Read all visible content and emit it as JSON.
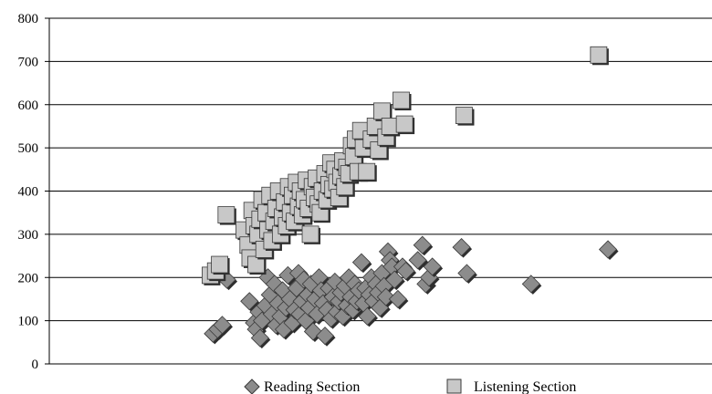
{
  "chart_data": {
    "type": "scatter",
    "title": "",
    "xlabel": "",
    "ylabel": "",
    "ylim": [
      0,
      800
    ],
    "yticks": [
      "0",
      "100",
      "200",
      "300",
      "400",
      "500",
      "600",
      "700",
      "800"
    ],
    "grid": "horizontal",
    "legend_placement": "bottom-center",
    "series": [
      {
        "name": "Reading Section",
        "marker": "diamond",
        "color": "#8c8c8c",
        "points": [
          [
            0.247,
            70
          ],
          [
            0.254,
            80
          ],
          [
            0.261,
            90
          ],
          [
            0.268,
            195
          ],
          [
            0.302,
            145
          ],
          [
            0.309,
            95
          ],
          [
            0.312,
            80
          ],
          [
            0.316,
            120
          ],
          [
            0.318,
            60
          ],
          [
            0.321,
            100
          ],
          [
            0.326,
            135
          ],
          [
            0.33,
            200
          ],
          [
            0.333,
            160
          ],
          [
            0.336,
            115
          ],
          [
            0.34,
            185
          ],
          [
            0.342,
            90
          ],
          [
            0.345,
            140
          ],
          [
            0.349,
            110
          ],
          [
            0.352,
            170
          ],
          [
            0.354,
            80
          ],
          [
            0.357,
            130
          ],
          [
            0.36,
            205
          ],
          [
            0.363,
            150
          ],
          [
            0.367,
            95
          ],
          [
            0.37,
            125
          ],
          [
            0.373,
            175
          ],
          [
            0.376,
            210
          ],
          [
            0.378,
            115
          ],
          [
            0.381,
            145
          ],
          [
            0.384,
            195
          ],
          [
            0.387,
            100
          ],
          [
            0.39,
            160
          ],
          [
            0.392,
            130
          ],
          [
            0.395,
            185
          ],
          [
            0.398,
            75
          ],
          [
            0.401,
            150
          ],
          [
            0.404,
            115
          ],
          [
            0.407,
            200
          ],
          [
            0.41,
            170
          ],
          [
            0.413,
            140
          ],
          [
            0.416,
            65
          ],
          [
            0.419,
            125
          ],
          [
            0.422,
            175
          ],
          [
            0.425,
            105
          ],
          [
            0.428,
            155
          ],
          [
            0.431,
            190
          ],
          [
            0.434,
            120
          ],
          [
            0.437,
            145
          ],
          [
            0.44,
            165
          ],
          [
            0.443,
            110
          ],
          [
            0.446,
            180
          ],
          [
            0.449,
            135
          ],
          [
            0.452,
            200
          ],
          [
            0.455,
            155
          ],
          [
            0.458,
            125
          ],
          [
            0.461,
            185
          ],
          [
            0.464,
            145
          ],
          [
            0.467,
            170
          ],
          [
            0.471,
            235
          ],
          [
            0.474,
            140
          ],
          [
            0.477,
            175
          ],
          [
            0.48,
            110
          ],
          [
            0.483,
            160
          ],
          [
            0.486,
            200
          ],
          [
            0.489,
            145
          ],
          [
            0.493,
            185
          ],
          [
            0.496,
            165
          ],
          [
            0.499,
            130
          ],
          [
            0.502,
            210
          ],
          [
            0.505,
            180
          ],
          [
            0.508,
            155
          ],
          [
            0.511,
            260
          ],
          [
            0.514,
            240
          ],
          [
            0.517,
            225
          ],
          [
            0.521,
            195
          ],
          [
            0.526,
            150
          ],
          [
            0.533,
            225
          ],
          [
            0.538,
            215
          ],
          [
            0.556,
            240
          ],
          [
            0.563,
            275
          ],
          [
            0.568,
            185
          ],
          [
            0.573,
            200
          ],
          [
            0.578,
            225
          ],
          [
            0.622,
            270
          ],
          [
            0.63,
            210
          ],
          [
            0.727,
            185
          ],
          [
            0.843,
            265
          ]
        ]
      },
      {
        "name": "Listening Section",
        "marker": "square",
        "color": "#c8c8c8",
        "points": [
          [
            0.243,
            205
          ],
          [
            0.251,
            215
          ],
          [
            0.257,
            230
          ],
          [
            0.267,
            345
          ],
          [
            0.294,
            310
          ],
          [
            0.3,
            275
          ],
          [
            0.303,
            245
          ],
          [
            0.306,
            355
          ],
          [
            0.309,
            320
          ],
          [
            0.312,
            230
          ],
          [
            0.315,
            300
          ],
          [
            0.318,
            335
          ],
          [
            0.321,
            380
          ],
          [
            0.324,
            265
          ],
          [
            0.327,
            350
          ],
          [
            0.33,
            310
          ],
          [
            0.333,
            390
          ],
          [
            0.336,
            285
          ],
          [
            0.339,
            330
          ],
          [
            0.342,
            360
          ],
          [
            0.346,
            400
          ],
          [
            0.349,
            300
          ],
          [
            0.352,
            340
          ],
          [
            0.355,
            375
          ],
          [
            0.358,
            320
          ],
          [
            0.361,
            410
          ],
          [
            0.364,
            350
          ],
          [
            0.367,
            390
          ],
          [
            0.37,
            330
          ],
          [
            0.373,
            420
          ],
          [
            0.376,
            365
          ],
          [
            0.379,
            400
          ],
          [
            0.382,
            345
          ],
          [
            0.385,
            380
          ],
          [
            0.388,
            425
          ],
          [
            0.391,
            360
          ],
          [
            0.394,
            300
          ],
          [
            0.397,
            410
          ],
          [
            0.4,
            385
          ],
          [
            0.403,
            430
          ],
          [
            0.406,
            370
          ],
          [
            0.409,
            350
          ],
          [
            0.412,
            400
          ],
          [
            0.416,
            440
          ],
          [
            0.419,
            380
          ],
          [
            0.422,
            415
          ],
          [
            0.425,
            465
          ],
          [
            0.428,
            405
          ],
          [
            0.431,
            450
          ],
          [
            0.434,
            420
          ],
          [
            0.437,
            385
          ],
          [
            0.44,
            435
          ],
          [
            0.443,
            470
          ],
          [
            0.446,
            410
          ],
          [
            0.449,
            455
          ],
          [
            0.452,
            440
          ],
          [
            0.456,
            505
          ],
          [
            0.459,
            480
          ],
          [
            0.462,
            520
          ],
          [
            0.466,
            445
          ],
          [
            0.47,
            540
          ],
          [
            0.474,
            500
          ],
          [
            0.479,
            445
          ],
          [
            0.486,
            520
          ],
          [
            0.492,
            550
          ],
          [
            0.497,
            495
          ],
          [
            0.502,
            585
          ],
          [
            0.508,
            525
          ],
          [
            0.514,
            550
          ],
          [
            0.531,
            610
          ],
          [
            0.536,
            555
          ],
          [
            0.626,
            575
          ],
          [
            0.829,
            715
          ]
        ]
      }
    ]
  }
}
